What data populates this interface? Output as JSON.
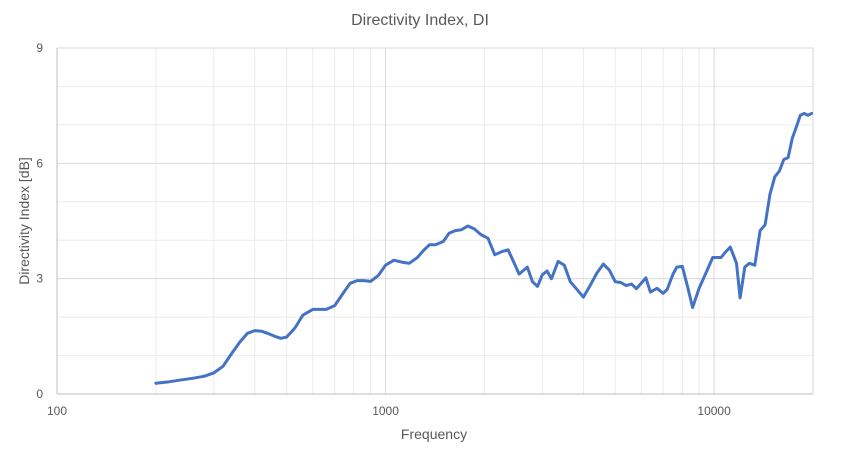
{
  "chart_data": {
    "type": "line",
    "title": "Directivity Index, DI",
    "xlabel": "Frequency",
    "ylabel": "Directivity Index [dB]",
    "xscale": "log",
    "xlim": [
      100,
      20000
    ],
    "ylim": [
      0,
      9
    ],
    "xticks": [
      100,
      1000,
      10000
    ],
    "xtick_labels": [
      "100",
      "1000",
      "10000"
    ],
    "yticks": [
      0,
      3,
      6,
      9
    ],
    "ytick_labels": [
      "0",
      "3",
      "6",
      "9"
    ],
    "grid": true,
    "legend": "none",
    "series": [
      {
        "color": "#4472C4",
        "x": [
          200,
          220,
          240,
          260,
          280,
          300,
          320,
          340,
          360,
          380,
          400,
          420,
          440,
          460,
          480,
          500,
          530,
          560,
          600,
          630,
          660,
          700,
          740,
          780,
          820,
          860,
          900,
          950,
          1000,
          1060,
          1120,
          1180,
          1250,
          1300,
          1360,
          1420,
          1500,
          1560,
          1630,
          1700,
          1780,
          1860,
          1950,
          2050,
          2150,
          2250,
          2360,
          2450,
          2550,
          2700,
          2800,
          2900,
          3000,
          3100,
          3200,
          3350,
          3500,
          3650,
          3800,
          4000,
          4200,
          4400,
          4600,
          4800,
          5000,
          5200,
          5400,
          5600,
          5800,
          6000,
          6200,
          6400,
          6700,
          7000,
          7200,
          7500,
          7700,
          8000,
          8300,
          8600,
          9000,
          9500,
          9900,
          10200,
          10500,
          10800,
          11200,
          11700,
          12000,
          12400,
          12800,
          13300,
          13800,
          14300,
          14800,
          15300,
          15800,
          16300,
          16800,
          17300,
          17800,
          18300,
          18800,
          19300,
          19800
        ],
        "y": [
          0.28,
          0.32,
          0.37,
          0.41,
          0.46,
          0.55,
          0.72,
          1.05,
          1.35,
          1.58,
          1.65,
          1.63,
          1.57,
          1.5,
          1.45,
          1.48,
          1.72,
          2.05,
          2.2,
          2.2,
          2.2,
          2.3,
          2.6,
          2.88,
          2.95,
          2.95,
          2.93,
          3.08,
          3.35,
          3.48,
          3.43,
          3.4,
          3.55,
          3.72,
          3.88,
          3.88,
          3.97,
          4.18,
          4.25,
          4.27,
          4.37,
          4.3,
          4.15,
          4.05,
          3.62,
          3.7,
          3.75,
          3.45,
          3.12,
          3.3,
          2.92,
          2.8,
          3.1,
          3.2,
          3.0,
          3.45,
          3.35,
          2.92,
          2.75,
          2.52,
          2.83,
          3.15,
          3.38,
          3.22,
          2.92,
          2.9,
          2.82,
          2.86,
          2.74,
          2.88,
          3.02,
          2.65,
          2.75,
          2.62,
          2.72,
          3.12,
          3.3,
          3.32,
          2.8,
          2.25,
          2.75,
          3.2,
          3.55,
          3.55,
          3.55,
          3.68,
          3.82,
          3.4,
          2.5,
          3.3,
          3.4,
          3.35,
          4.25,
          4.4,
          5.2,
          5.65,
          5.8,
          6.1,
          6.15,
          6.65,
          6.95,
          7.25,
          7.3,
          7.25,
          7.3
        ]
      }
    ]
  }
}
